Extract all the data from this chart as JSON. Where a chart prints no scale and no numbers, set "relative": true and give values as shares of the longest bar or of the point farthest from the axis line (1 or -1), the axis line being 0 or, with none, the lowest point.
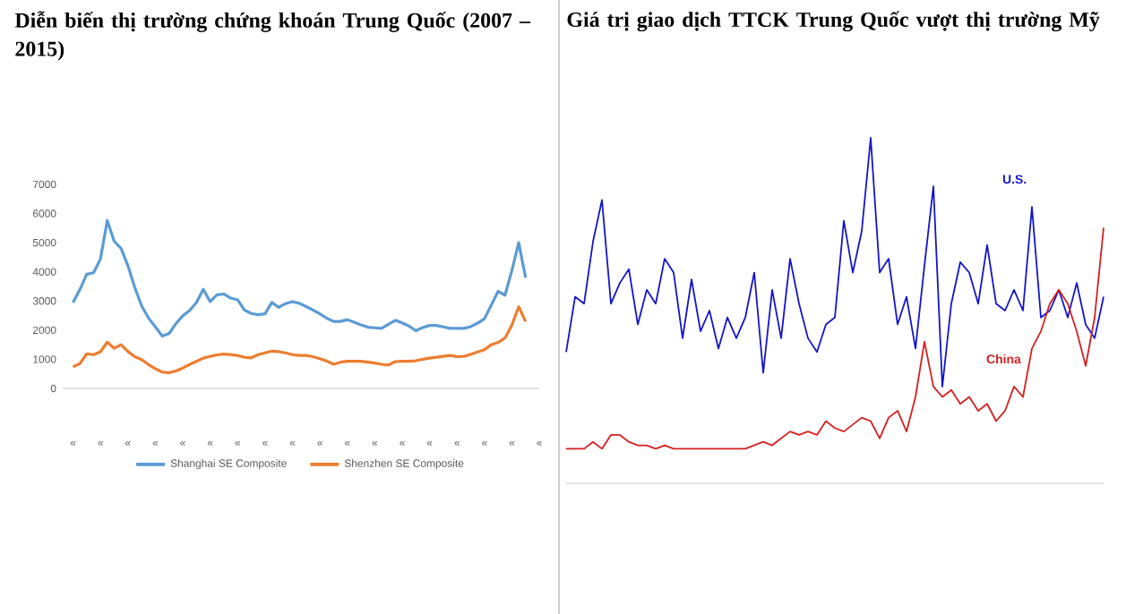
{
  "chart_data": [
    {
      "type": "line",
      "title": "Diễn biến thị trường chứng khoán Trung Quốc (2007 – 2015)",
      "legend": "bottom",
      "categories": [
        "«",
        null,
        null,
        null,
        "«",
        null,
        null,
        null,
        "«",
        null,
        null,
        null,
        "«",
        null,
        null,
        null,
        "«",
        null,
        null,
        null,
        "«",
        null,
        null,
        null,
        "«",
        null,
        null,
        null,
        "«",
        null,
        null,
        null,
        "«",
        null,
        null,
        null,
        "«",
        null,
        null,
        null,
        "«",
        null,
        null,
        null,
        "«",
        null,
        null,
        null,
        "«",
        null,
        null,
        null,
        "«",
        null,
        null,
        null,
        "«",
        null,
        null,
        null,
        "«",
        null,
        null,
        null,
        "«",
        null,
        null,
        null,
        "«"
      ],
      "ylim": [
        0,
        7000
      ],
      "yticks": [
        0,
        1000,
        2000,
        3000,
        4000,
        5000,
        6000,
        7000
      ],
      "series": [
        {
          "name": "Shanghai SE Composite",
          "color": "#5b9bd5",
          "values": [
            2950,
            3390,
            3920,
            3970,
            4440,
            5760,
            5050,
            4810,
            4220,
            3470,
            2840,
            2420,
            2120,
            1800,
            1880,
            2220,
            2490,
            2670,
            2950,
            3400,
            2980,
            3210,
            3240,
            3100,
            3040,
            2690,
            2570,
            2530,
            2560,
            2950,
            2780,
            2910,
            2980,
            2920,
            2810,
            2690,
            2560,
            2410,
            2300,
            2300,
            2360,
            2270,
            2180,
            2100,
            2080,
            2060,
            2200,
            2340,
            2250,
            2140,
            1980,
            2090,
            2160,
            2160,
            2110,
            2060,
            2060,
            2060,
            2120,
            2240,
            2390,
            2860,
            3330,
            3200,
            4040,
            5000,
            3800,
            null,
            null
          ]
        },
        {
          "name": "Shenzhen SE Composite",
          "color": "#ed7d31",
          "values": [
            740,
            850,
            1190,
            1160,
            1260,
            1590,
            1380,
            1500,
            1270,
            1090,
            990,
            820,
            680,
            560,
            540,
            600,
            700,
            820,
            930,
            1040,
            1100,
            1150,
            1180,
            1160,
            1130,
            1070,
            1050,
            1160,
            1220,
            1280,
            1260,
            1220,
            1160,
            1130,
            1130,
            1090,
            1020,
            940,
            830,
            900,
            930,
            930,
            930,
            900,
            870,
            830,
            800,
            920,
            930,
            930,
            950,
            1000,
            1040,
            1070,
            1100,
            1130,
            1090,
            1100,
            1170,
            1250,
            1330,
            1500,
            1580,
            1730,
            2170,
            2800,
            2300,
            null,
            null
          ]
        }
      ]
    },
    {
      "type": "line",
      "title": "Giá trị giao dịch TTCK Trung Quốc vượt thị trường Mỹ",
      "relative": true,
      "categories": [
        null,
        null,
        null,
        null,
        null,
        null,
        null,
        null,
        null,
        null,
        null,
        null,
        null,
        null,
        null,
        null,
        null,
        null,
        null,
        null,
        null,
        null,
        null,
        null,
        null,
        null,
        null,
        null,
        null,
        null,
        null,
        null,
        null,
        null,
        null,
        null,
        null,
        null,
        null,
        null,
        null,
        null,
        null,
        null,
        null,
        null,
        null,
        null,
        null,
        null,
        null,
        null,
        null,
        null,
        null,
        null,
        null,
        null,
        null,
        null,
        null
      ],
      "series": [
        {
          "name": "U.S.",
          "color": "#1414c8",
          "values": [
            0.38,
            0.54,
            0.52,
            0.7,
            0.82,
            0.52,
            0.58,
            0.62,
            0.46,
            0.56,
            0.52,
            0.65,
            0.61,
            0.42,
            0.59,
            0.44,
            0.5,
            0.39,
            0.48,
            0.42,
            0.48,
            0.61,
            0.32,
            0.56,
            0.42,
            0.65,
            0.52,
            0.42,
            0.38,
            0.46,
            0.48,
            0.76,
            0.61,
            0.73,
            1.0,
            0.61,
            0.65,
            0.46,
            0.54,
            0.39,
            0.63,
            0.86,
            0.28,
            0.52,
            0.64,
            0.61,
            0.52,
            0.69,
            0.52,
            0.5,
            0.56,
            0.5,
            0.8,
            0.48,
            0.5,
            0.56,
            0.48,
            0.58,
            0.46,
            0.42,
            0.54
          ]
        },
        {
          "name": "China",
          "color": "#d42020",
          "values": [
            0.1,
            0.1,
            0.1,
            0.12,
            0.1,
            0.14,
            0.14,
            0.12,
            0.11,
            0.11,
            0.1,
            0.11,
            0.1,
            0.1,
            0.1,
            0.1,
            0.1,
            0.1,
            0.1,
            0.1,
            0.1,
            0.11,
            0.12,
            0.11,
            0.13,
            0.15,
            0.14,
            0.15,
            0.14,
            0.18,
            0.16,
            0.15,
            0.17,
            0.19,
            0.18,
            0.13,
            0.19,
            0.21,
            0.15,
            0.25,
            0.41,
            0.28,
            0.25,
            0.27,
            0.23,
            0.25,
            0.21,
            0.23,
            0.18,
            0.21,
            0.28,
            0.25,
            0.39,
            0.44,
            0.52,
            0.56,
            0.52,
            0.44,
            0.34,
            0.48,
            0.74
          ]
        }
      ]
    }
  ]
}
